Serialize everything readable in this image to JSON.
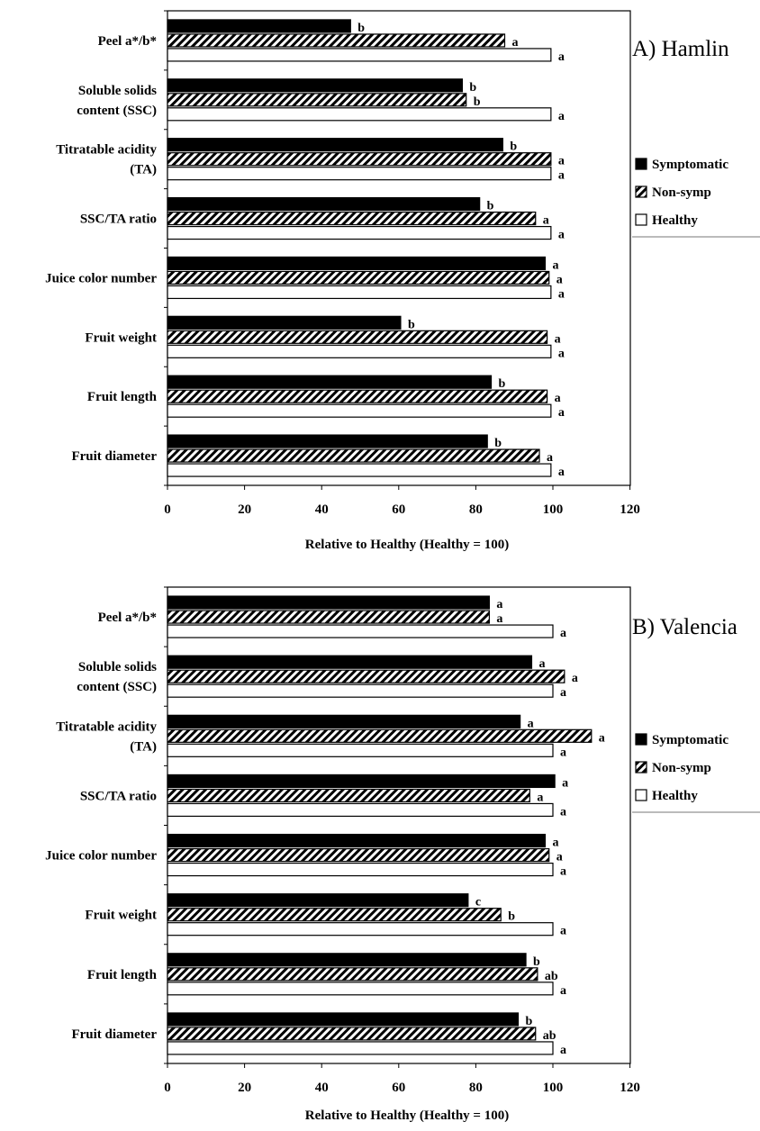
{
  "chart_data": [
    {
      "type": "bar",
      "orientation": "horizontal",
      "title": "A) Hamlin",
      "xlabel": "Relative to Healthy (Healthy = 100)",
      "xlim": [
        0,
        120
      ],
      "xticks": [
        "0",
        "20",
        "40",
        "60",
        "80",
        "100",
        "120"
      ],
      "categories": [
        "Peel a*/b*",
        "Soluble solids content (SSC)",
        "Titratable acidity (TA)",
        "SSC/TA ratio",
        "Juice color number",
        "Fruit weight",
        "Fruit length",
        "Fruit diameter"
      ],
      "category_lines": [
        [
          "Peel a*/b*"
        ],
        [
          "Soluble solids",
          "content (SSC)"
        ],
        [
          "Titratable acidity",
          "(TA)"
        ],
        [
          "SSC/TA ratio"
        ],
        [
          "Juice color number"
        ],
        [
          "Fruit weight"
        ],
        [
          "Fruit length"
        ],
        [
          "Fruit diameter"
        ]
      ],
      "legend": [
        "Symptomatic",
        "Non-symp",
        "Healthy"
      ],
      "legend_position": "right",
      "series": [
        {
          "name": "Symptomatic",
          "style": "solid",
          "values": [
            47.5,
            76.5,
            87,
            81,
            98,
            60.5,
            84,
            83
          ],
          "labels": [
            "b",
            "b",
            "b",
            "b",
            "a",
            "b",
            "b",
            "b"
          ]
        },
        {
          "name": "Non-symp",
          "style": "hatched",
          "values": [
            87.5,
            77.5,
            99.5,
            95.5,
            99,
            98.5,
            98.5,
            96.5
          ],
          "labels": [
            "a",
            "b",
            "a",
            "a",
            "a",
            "a",
            "a",
            "a"
          ]
        },
        {
          "name": "Healthy",
          "style": "open",
          "values": [
            99.5,
            99.5,
            99.5,
            99.5,
            99.5,
            99.5,
            99.5,
            99.5
          ],
          "labels": [
            "a",
            "a",
            "a",
            "a",
            "a",
            "a",
            "a",
            "a"
          ]
        }
      ]
    },
    {
      "type": "bar",
      "orientation": "horizontal",
      "title": "B) Valencia",
      "xlabel": "Relative to Healthy (Healthy = 100)",
      "xlim": [
        0,
        120
      ],
      "xticks": [
        "0",
        "20",
        "40",
        "60",
        "80",
        "100",
        "120"
      ],
      "categories": [
        "Peel a*/b*",
        "Soluble solids content (SSC)",
        "Titratable acidity (TA)",
        "SSC/TA ratio",
        "Juice color number",
        "Fruit weight",
        "Fruit length",
        "Fruit diameter"
      ],
      "category_lines": [
        [
          "Peel a*/b*"
        ],
        [
          "Soluble solids",
          "content (SSC)"
        ],
        [
          "Titratable acidity",
          "(TA)"
        ],
        [
          "SSC/TA ratio"
        ],
        [
          "Juice color number"
        ],
        [
          "Fruit weight"
        ],
        [
          "Fruit length"
        ],
        [
          "Fruit diameter"
        ]
      ],
      "legend": [
        "Symptomatic",
        "Non-symp",
        "Healthy"
      ],
      "legend_position": "right",
      "series": [
        {
          "name": "Symptomatic",
          "style": "solid",
          "values": [
            83.5,
            94.5,
            91.5,
            100.5,
            98,
            78,
            93,
            91
          ],
          "labels": [
            "a",
            "a",
            "a",
            "a",
            "a",
            "c",
            "b",
            "b"
          ]
        },
        {
          "name": "Non-symp",
          "style": "hatched",
          "values": [
            83.5,
            103,
            110,
            94,
            99,
            86.5,
            96,
            95.5
          ],
          "labels": [
            "a",
            "a",
            "a",
            "a",
            "a",
            "b",
            "ab",
            "ab"
          ]
        },
        {
          "name": "Healthy",
          "style": "open",
          "values": [
            100,
            100,
            100,
            100,
            100,
            100,
            100,
            100
          ],
          "labels": [
            "a",
            "a",
            "a",
            "a",
            "a",
            "a",
            "a",
            "a"
          ]
        }
      ]
    }
  ]
}
